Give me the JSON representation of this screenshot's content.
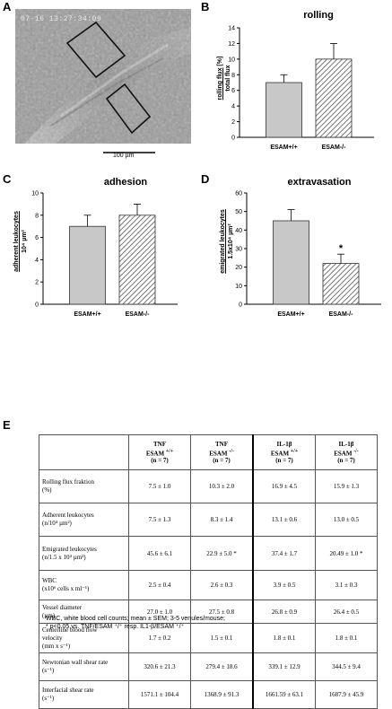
{
  "panels": {
    "a": {
      "letter": "A",
      "timestamp": "07-16 13:27:34:09",
      "scale_bar": "100 µm"
    },
    "b": {
      "letter": "B"
    },
    "c": {
      "letter": "C"
    },
    "d": {
      "letter": "D"
    },
    "e": {
      "letter": "E"
    }
  },
  "chart_data": [
    {
      "type": "bar",
      "title": "rolling",
      "ylabel_line1": "rolling flux",
      "ylabel_line2": "total flux",
      "ylabel_unit": "[%]",
      "categories": [
        "ESAM+/+",
        "ESAM-/-"
      ],
      "values": [
        7,
        10
      ],
      "errors": [
        1,
        2
      ],
      "ylim": [
        0,
        14
      ],
      "yticks": [
        "0",
        "2",
        "4",
        "6",
        "8",
        "10",
        "12",
        "14"
      ],
      "bar_styles": [
        "solid-gray",
        "hatched"
      ],
      "annotations": []
    },
    {
      "type": "bar",
      "title": "adhesion",
      "ylabel_line1": "adherent leukocytes",
      "ylabel_line2": "10⁴ µm²",
      "categories": [
        "ESAM+/+",
        "ESAM-/-"
      ],
      "values": [
        7,
        8
      ],
      "errors": [
        1,
        1
      ],
      "ylim": [
        0,
        10
      ],
      "yticks": [
        "0",
        "2",
        "4",
        "6",
        "8",
        "10"
      ],
      "bar_styles": [
        "solid-gray",
        "hatched"
      ],
      "annotations": []
    },
    {
      "type": "bar",
      "title": "extravasation",
      "ylabel_line1": "emigrated leukocytes",
      "ylabel_line2": "1.5x10⁴ µm²",
      "categories": [
        "ESAM+/+",
        "ESAM-/-"
      ],
      "values": [
        45,
        22
      ],
      "errors": [
        6,
        5
      ],
      "ylim": [
        0,
        60
      ],
      "yticks": [
        "0",
        "10",
        "20",
        "30",
        "40",
        "50",
        "60"
      ],
      "bar_styles": [
        "solid-gray",
        "hatched"
      ],
      "annotations": [
        "*"
      ]
    }
  ],
  "table": {
    "headers": [
      {
        "l1": "TNF",
        "l2": "ESAM",
        "sup": "+/+",
        "l3": "(n = 7)"
      },
      {
        "l1": "TNF",
        "l2": "ESAM",
        "sup": "-/-",
        "l3": "(n = 7)"
      },
      {
        "l1": "IL-1β",
        "l2": "ESAM",
        "sup": "+/+",
        "l3": "(n = 7)"
      },
      {
        "l1": "IL-1β",
        "l2": "ESAM",
        "sup": "-/-",
        "l3": "(n = 7)"
      }
    ],
    "rows": [
      {
        "p1": "Rolling flux fraktion",
        "p2": "(%)",
        "v": [
          "7.5 ± 1.0",
          "10.3 ± 2.0",
          "16.9 ± 4.5",
          "15.9 ± 1.3"
        ]
      },
      {
        "p1": "Adherent leukocytes",
        "p2": "(n/10⁴ µm²)",
        "v": [
          "7.5 ± 1.3",
          "8.3 ± 1.4",
          "13.1 ± 0.6",
          "13.0 ± 0.5"
        ]
      },
      {
        "p1": "Emigrated leukocytes",
        "p2": "(n/1.5 x 10⁴ µm²)",
        "v": [
          "45.6 ± 6.1",
          "22.9 ± 5.0 *",
          "37.4 ± 1.7",
          "20.49 ± 1.0 *"
        ]
      },
      {
        "p1": "WBC",
        "p2": "(x10⁶ cells x ml⁻¹)",
        "v": [
          "2.5 ± 0.4",
          "2.6 ± 0.3",
          "3.9 ± 0.5",
          "3.1 ± 0.3"
        ]
      },
      {
        "p1": "Vessel diameter",
        "p2": "(µm)",
        "v": [
          "27.0 ± 1.0",
          "27.5 ± 0.8",
          "26.8 ± 0.9",
          "26.4 ± 0.5"
        ]
      },
      {
        "p1": "Centerline blood flow",
        "p2": "velocity",
        "p3": "(mm x s⁻¹)",
        "v": [
          "1.7 ± 0.2",
          "1.5 ± 0.1",
          "1.8 ± 0.1",
          "1.8 ± 0.1"
        ]
      },
      {
        "p1": "Newtonian wall shear rate",
        "p2": "(s⁻¹)",
        "v": [
          "320.6 ± 21.3",
          "279.4 ± 18.6",
          "339.1 ± 12.9",
          "344.5 ± 9.4"
        ]
      },
      {
        "p1": "Interfacial shear rate",
        "p2": "(s⁻¹)",
        "v": [
          "1571.1 ± 104.4",
          "1368.9 ± 91.3",
          "1661.59 ± 63.1",
          "1687.9 ± 45.9"
        ]
      }
    ]
  },
  "footnote": {
    "line1": "WBC, white blood cell counts; mean ± SEM; 3-5 venules/mouse;",
    "line2": "* p<0.05 vs. TNF/ESAM ⁺/⁺ resp. IL1-β/ESAM ⁺/⁺"
  },
  "colors": {
    "bar_fill": "#c8c8c8",
    "hatch": "#555555",
    "axis": "#000000"
  }
}
